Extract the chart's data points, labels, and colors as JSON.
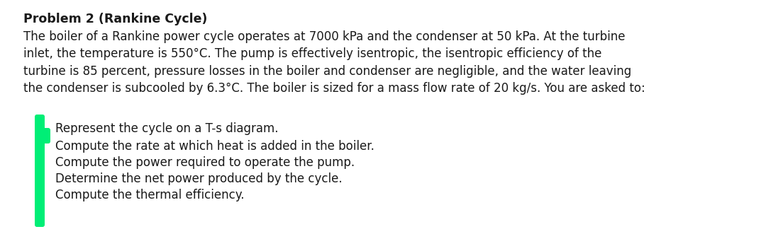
{
  "title": "Problem 2 (Rankine Cycle)",
  "paragraph": "The boiler of a Rankine power cycle operates at 7000 kPa and the condenser at 50 kPa. At the turbine\ninlet, the temperature is 550°C. The pump is effectively isentropic, the isentropic efficiency of the\nturbine is 85 percent, pressure losses in the boiler and condenser are negligible, and the water leaving\nthe condenser is subcooled by 6.3°C. The boiler is sized for a mass flow rate of 20 kg/s. You are asked to:",
  "bullet_items": [
    "Represent the cycle on a T-s diagram.",
    "Compute the rate at which heat is added in the boiler.",
    "Compute the power required to operate the pump.",
    "Determine the net power produced by the cycle.",
    "Compute the thermal efficiency."
  ],
  "background_color": "#ffffff",
  "text_color": "#1a1a1a",
  "bar_color": "#00ee76",
  "title_fontsize": 12.5,
  "body_fontsize": 12.0,
  "bullet_fontsize": 12.0
}
